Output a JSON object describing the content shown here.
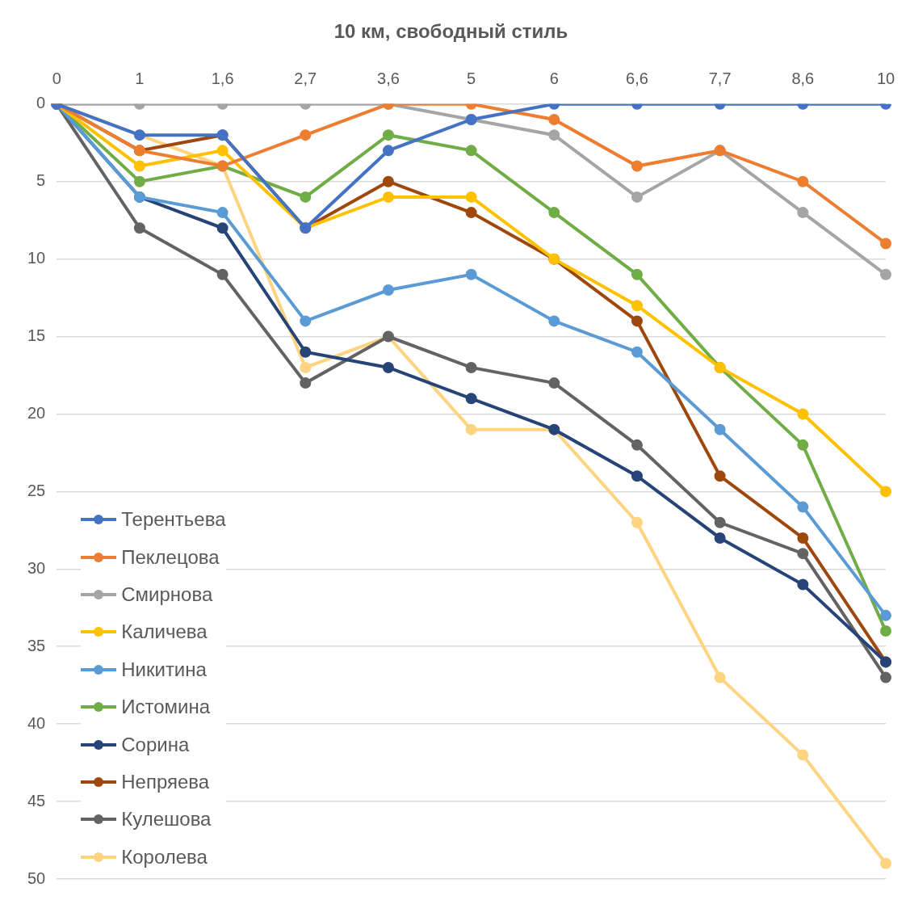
{
  "chart_data": {
    "type": "line",
    "title": "10 км, свободный стиль",
    "categories": [
      "0",
      "1",
      "1,6",
      "2,7",
      "3,6",
      "5",
      "6",
      "6,6",
      "7,7",
      "8,6",
      "10"
    ],
    "series": [
      {
        "name": "Терентьева",
        "color": "#4472c4",
        "values": [
          0,
          2,
          2,
          8,
          3,
          1,
          0,
          0,
          0,
          0,
          0
        ]
      },
      {
        "name": "Пеклецова",
        "color": "#ed7d31",
        "values": [
          0,
          3,
          4,
          2,
          0,
          0,
          1,
          4,
          3,
          5,
          9
        ]
      },
      {
        "name": "Смирнова",
        "color": "#a5a5a5",
        "values": [
          0,
          0,
          0,
          0,
          0,
          1,
          2,
          6,
          3,
          7,
          11
        ]
      },
      {
        "name": "Каличева",
        "color": "#ffc000",
        "values": [
          0,
          4,
          3,
          8,
          6,
          6,
          10,
          13,
          17,
          20,
          25
        ]
      },
      {
        "name": "Никитина",
        "color": "#5b9bd5",
        "values": [
          0,
          6,
          7,
          14,
          12,
          11,
          14,
          16,
          21,
          26,
          33
        ]
      },
      {
        "name": "Истомина",
        "color": "#70ad47",
        "values": [
          0,
          5,
          4,
          6,
          2,
          3,
          7,
          11,
          17,
          22,
          34
        ]
      },
      {
        "name": "Сорина",
        "color": "#264478",
        "values": [
          0,
          6,
          8,
          16,
          17,
          19,
          21,
          24,
          28,
          31,
          36
        ]
      },
      {
        "name": "Непряева",
        "color": "#9e480e",
        "values": [
          0,
          3,
          2,
          8,
          5,
          7,
          10,
          14,
          24,
          28,
          36
        ]
      },
      {
        "name": "Кулешова",
        "color": "#636363",
        "values": [
          0,
          8,
          11,
          18,
          15,
          17,
          18,
          22,
          27,
          29,
          37
        ]
      },
      {
        "name": "Королева",
        "color": "#ffd480",
        "values": [
          0,
          2,
          4,
          17,
          15,
          21,
          21,
          27,
          37,
          42,
          49
        ]
      }
    ],
    "ylim": [
      50,
      0
    ],
    "yticks": [
      0,
      5,
      10,
      15,
      20,
      25,
      30,
      35,
      40,
      45,
      50
    ],
    "grid": true,
    "legend": "lower left",
    "marker": "circle",
    "line_style": "solid"
  }
}
